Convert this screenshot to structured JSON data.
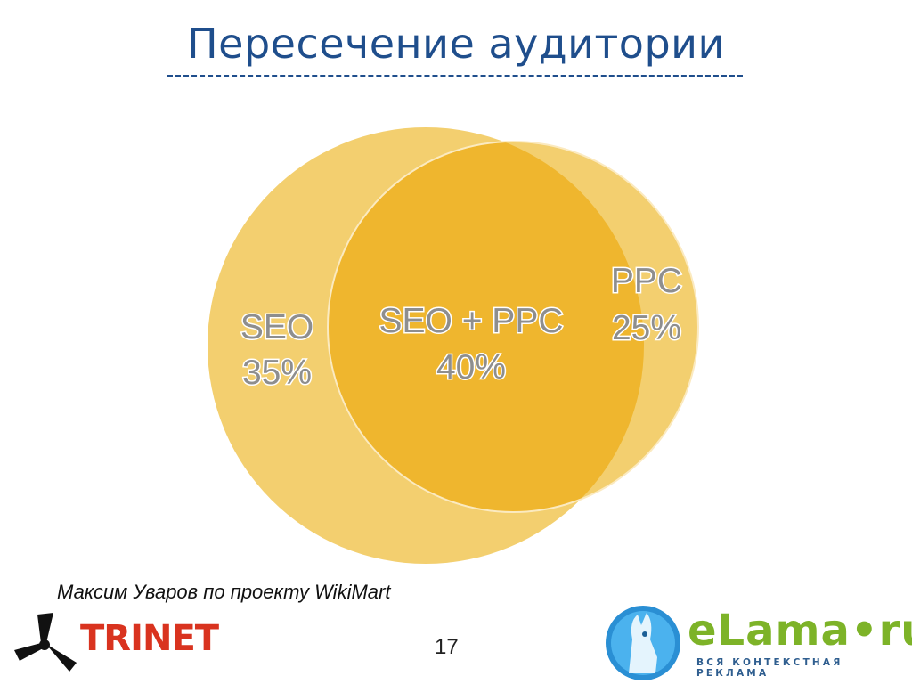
{
  "title": "Пересечение аудитории",
  "venn": {
    "seo_label": "SEO",
    "seo_value": "35%",
    "overlap_label": "SEO + PPC",
    "overlap_value": "40%",
    "ppc_label": "PPC",
    "ppc_value": "25%",
    "colors": {
      "circle": "#f3cf6f",
      "overlap": "#efb62e",
      "text": "#8e8e8e"
    }
  },
  "author_note": "Максим Уваров по проекту WikiMart",
  "page_number": "17",
  "logos": {
    "trinet": "TRINET",
    "elama_name": "eLama•ru",
    "elama_slogan": "ВСЯ КОНТЕКСТНАЯ РЕКЛАМА"
  }
}
